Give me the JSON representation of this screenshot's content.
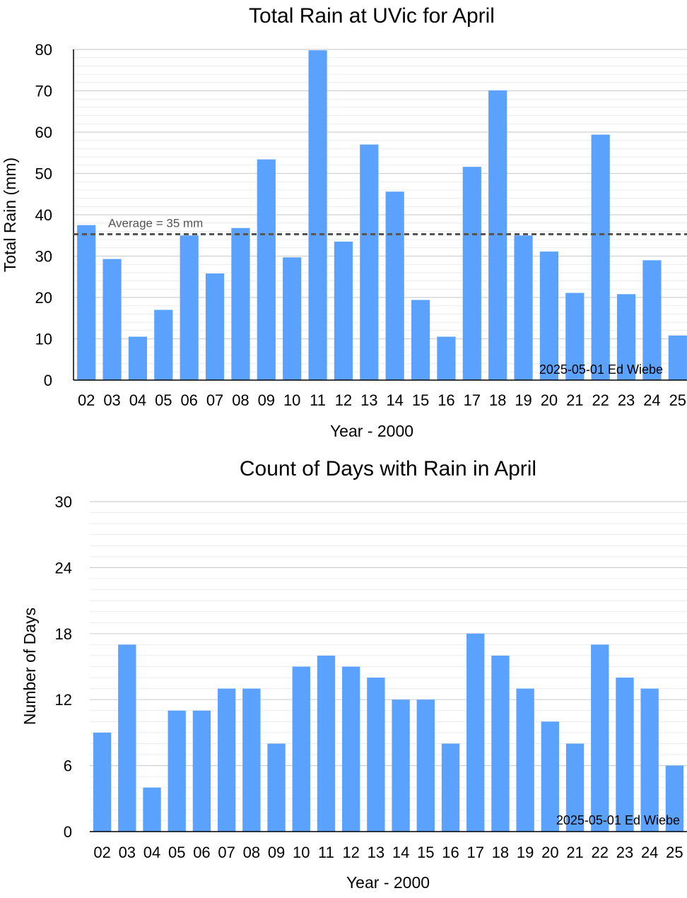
{
  "chart_data": [
    {
      "type": "bar",
      "title": "Total Rain at UVic for April",
      "xlabel": "Year - 2000",
      "ylabel": "Total Rain (mm)",
      "ylim": [
        0,
        80
      ],
      "yticks": [
        "0",
        "10",
        "20",
        "30",
        "40",
        "50",
        "60",
        "70",
        "80"
      ],
      "grid": true,
      "categories": [
        "02",
        "03",
        "04",
        "05",
        "06",
        "07",
        "08",
        "09",
        "10",
        "11",
        "12",
        "13",
        "14",
        "15",
        "16",
        "17",
        "18",
        "19",
        "20",
        "21",
        "22",
        "23",
        "24",
        "25"
      ],
      "values": [
        37.5,
        29.3,
        10.5,
        17.0,
        35.0,
        25.8,
        36.8,
        53.4,
        29.7,
        79.8,
        33.5,
        57.0,
        45.6,
        19.4,
        10.5,
        51.6,
        70.1,
        35.0,
        31.1,
        21.1,
        59.4,
        20.8,
        29.0,
        10.8
      ],
      "bar_color": "#5ba2ff",
      "reference_line": {
        "value": 35.3,
        "label": "Average = 35 mm",
        "color": "#555555"
      },
      "annotation": "2025-05-01 Ed Wiebe"
    },
    {
      "type": "bar",
      "title": "Count of Days with Rain in April",
      "xlabel": "Year - 2000",
      "ylabel": "Number of Days",
      "ylim": [
        0,
        30
      ],
      "yticks": [
        "0",
        "6",
        "12",
        "18",
        "24",
        "30"
      ],
      "grid": true,
      "categories": [
        "02",
        "03",
        "04",
        "05",
        "06",
        "07",
        "08",
        "09",
        "10",
        "11",
        "12",
        "13",
        "14",
        "15",
        "16",
        "17",
        "18",
        "19",
        "20",
        "21",
        "22",
        "23",
        "24",
        "25"
      ],
      "values": [
        9,
        17,
        4,
        11,
        11,
        13,
        13,
        8,
        15,
        16,
        15,
        14,
        12,
        12,
        8,
        18,
        16,
        13,
        10,
        8,
        17,
        14,
        13,
        6
      ],
      "bar_color": "#5ba2ff",
      "annotation": "2025-05-01 Ed Wiebe"
    }
  ]
}
